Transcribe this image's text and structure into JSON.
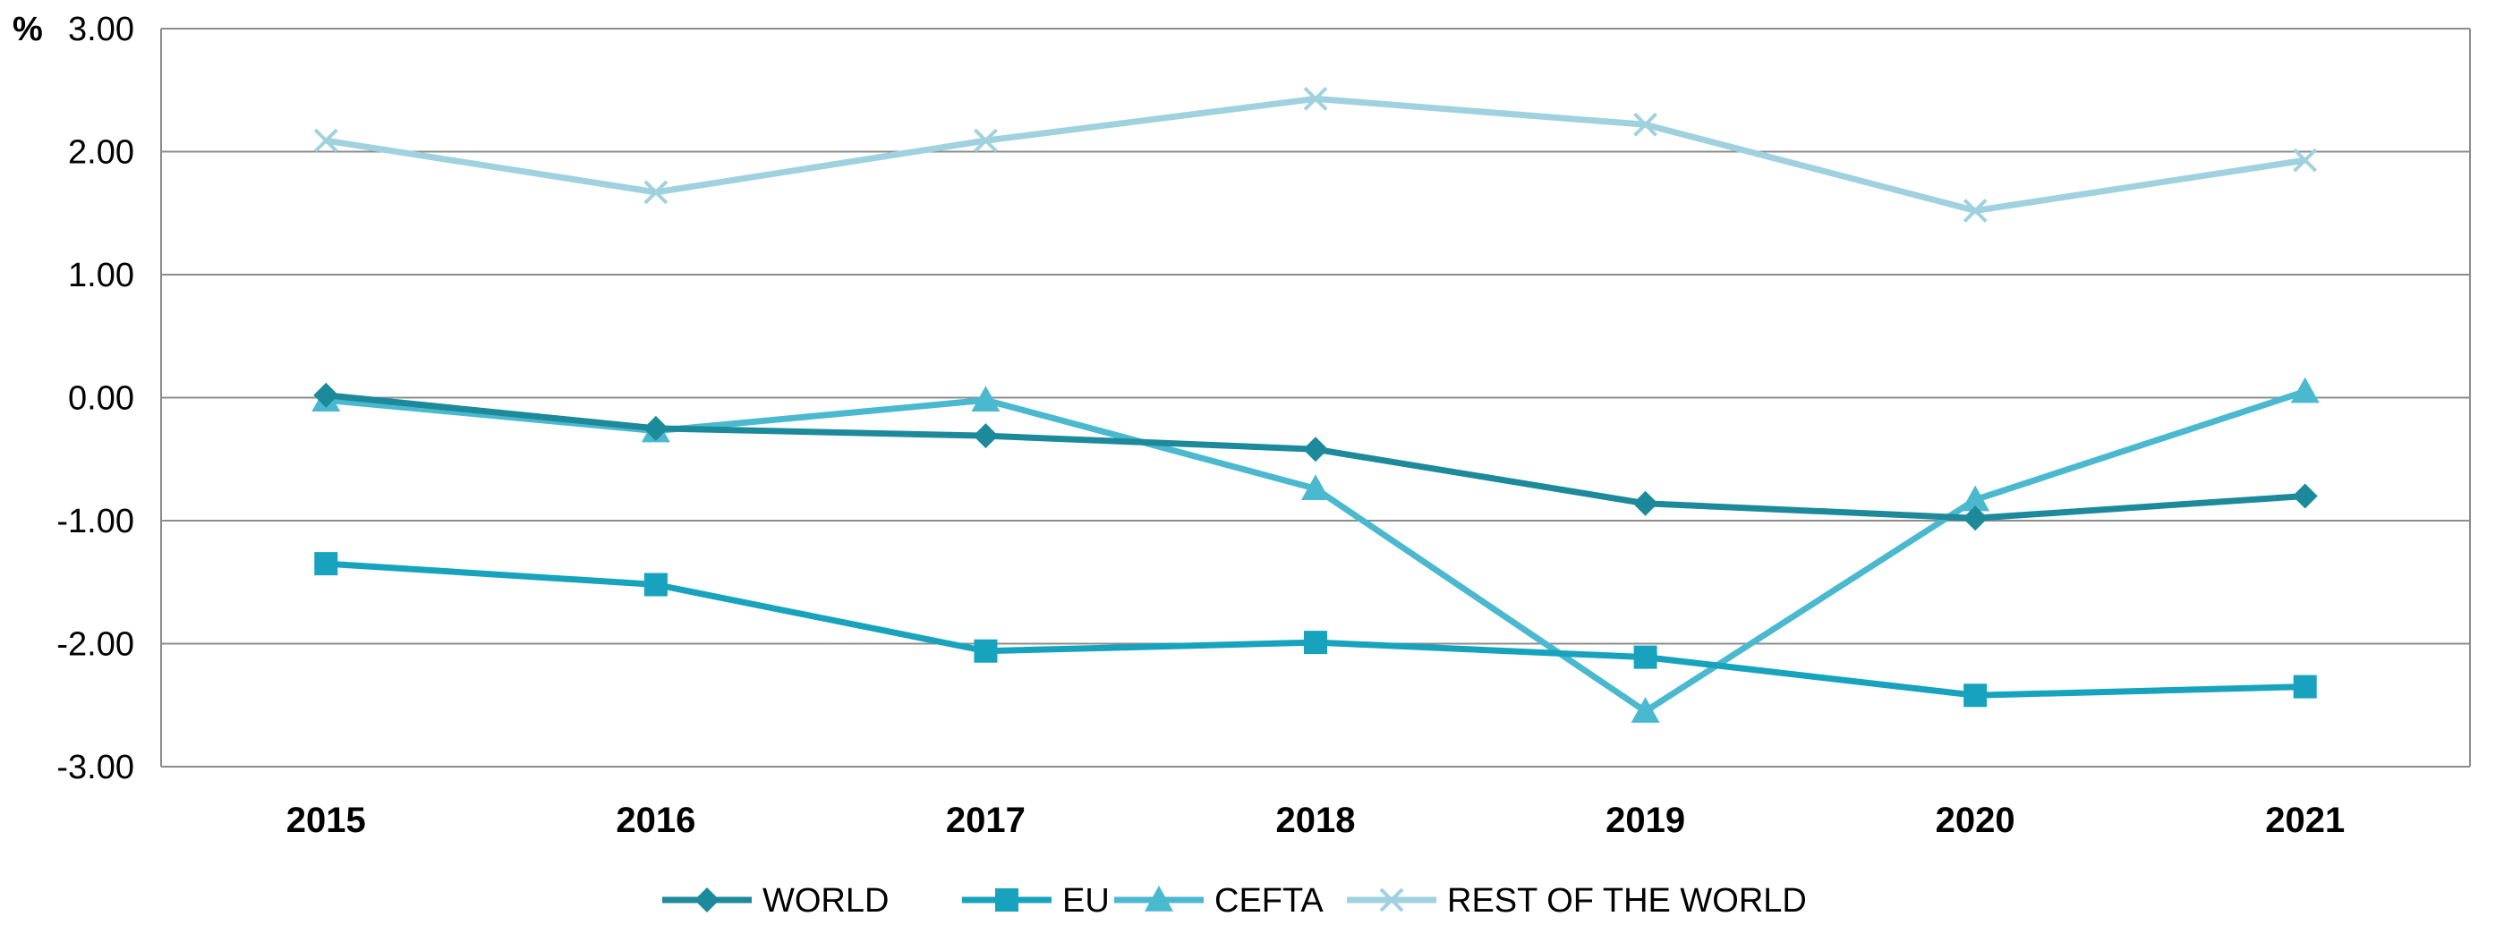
{
  "chart_data": {
    "type": "line",
    "title": "",
    "xlabel": "",
    "ylabel": "%",
    "ylim": [
      -3.0,
      3.0
    ],
    "yticks": [
      "3.00",
      "2.00",
      "1.00",
      "0.00",
      "-1.00",
      "-2.00",
      "-3.00"
    ],
    "ytick_values": [
      3,
      2,
      1,
      0,
      -1,
      -2,
      -3
    ],
    "grid": true,
    "legend": "bottom",
    "categories": [
      "2015",
      "2016",
      "2017",
      "2018",
      "2019",
      "2020",
      "2021"
    ],
    "series": [
      {
        "name": "WORLD",
        "marker": "diamond",
        "color": "#1c8a9b",
        "values": [
          0.02,
          -0.25,
          -0.31,
          -0.42,
          -0.86,
          -0.98,
          -0.8
        ]
      },
      {
        "name": "EU",
        "marker": "square",
        "color": "#17a3bd",
        "values": [
          -1.35,
          -1.52,
          -2.06,
          -1.99,
          -2.11,
          -2.42,
          -2.35
        ]
      },
      {
        "name": "CEFTA",
        "marker": "triangle",
        "color": "#4ab9cf",
        "values": [
          -0.02,
          -0.27,
          -0.02,
          -0.74,
          -2.55,
          -0.83,
          0.05
        ]
      },
      {
        "name": "REST OF THE WORLD",
        "marker": "x",
        "color": "#9fd1df",
        "values": [
          2.09,
          1.67,
          2.09,
          2.43,
          2.22,
          1.52,
          1.93
        ]
      }
    ]
  }
}
